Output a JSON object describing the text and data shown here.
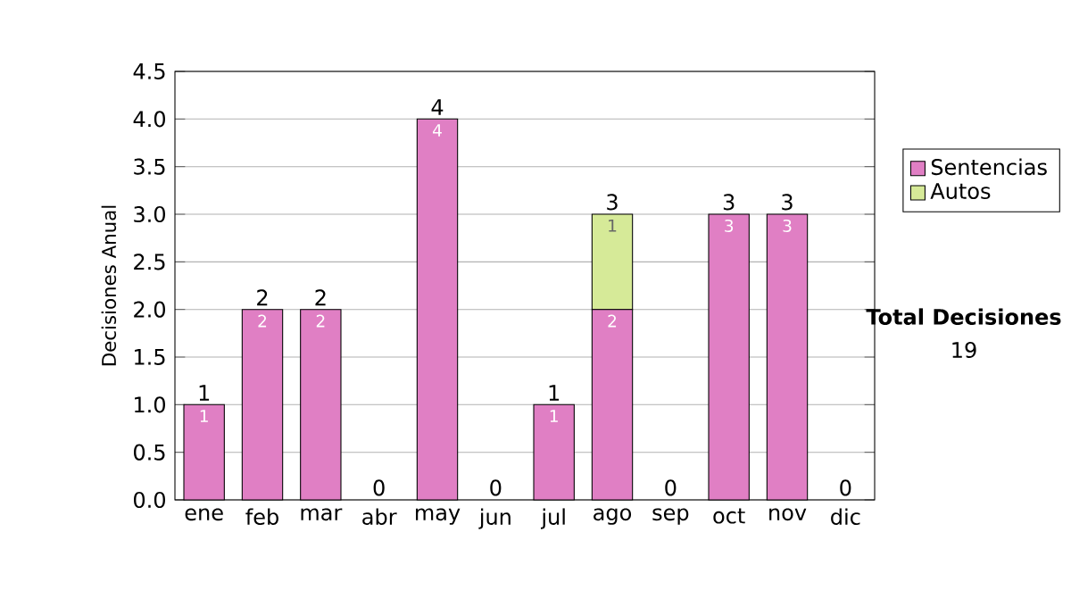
{
  "chart_data": {
    "type": "bar",
    "stacked": true,
    "ylabel": "Decisiones Anual",
    "categories": [
      "ene",
      "feb",
      "mar",
      "abr",
      "may",
      "jun",
      "jul",
      "ago",
      "sep",
      "oct",
      "nov",
      "dic"
    ],
    "series": [
      {
        "name": "Sentencias",
        "color": "#e07fc4",
        "values": [
          1,
          2,
          2,
          0,
          4,
          0,
          1,
          2,
          0,
          3,
          3,
          0
        ],
        "value_labels": [
          "1",
          "2",
          "2",
          null,
          "4",
          null,
          "1",
          "2",
          null,
          "3",
          "3",
          null
        ]
      },
      {
        "name": "Autos",
        "color": "#d6ea98",
        "values": [
          0,
          0,
          0,
          0,
          0,
          0,
          0,
          1,
          0,
          0,
          0,
          0
        ],
        "value_labels": [
          null,
          null,
          null,
          null,
          null,
          null,
          null,
          "1",
          null,
          null,
          null,
          null
        ]
      }
    ],
    "totals": [
      "1",
      "2",
      "2",
      "0",
      "4",
      "0",
      "1",
      "3",
      "0",
      "3",
      "3",
      "0"
    ],
    "ylim": [
      0,
      4.5
    ],
    "yticks": [
      {
        "value": 0,
        "label": "0.0"
      },
      {
        "value": 0.5,
        "label": "0.5"
      },
      {
        "value": 1,
        "label": "1.0"
      },
      {
        "value": 1.5,
        "label": "1.5"
      },
      {
        "value": 2,
        "label": "2.0"
      },
      {
        "value": 2.5,
        "label": "2.5"
      },
      {
        "value": 3,
        "label": "3.0"
      },
      {
        "value": 3.5,
        "label": "3.5"
      },
      {
        "value": 4,
        "label": "4.0"
      },
      {
        "value": 4.5,
        "label": "4.5"
      }
    ],
    "grid": "y",
    "legend": "right",
    "annotations": [
      "Total Decisiones",
      "19"
    ]
  }
}
